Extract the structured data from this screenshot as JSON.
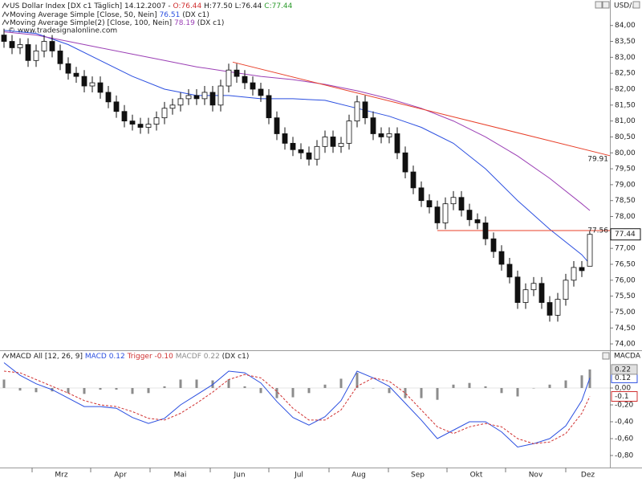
{
  "chart_data": [
    {
      "type": "candlestick",
      "title": "US Dollar Index [DX c1  Täglich] 14.12.2007 -",
      "ohlc_labels": [
        "O:76.44",
        "H:77.50",
        "L:76.44",
        "C:77.44"
      ],
      "symbol": "USD/...",
      "source": "(DX c1)",
      "watermark": "© www.tradesignalonline.com",
      "xlim": [
        -0.5,
        75.5
      ],
      "xticks": [
        {
          "value": 3.5,
          "label": "Mrz"
        },
        {
          "value": 10.8,
          "label": "Apr"
        },
        {
          "value": 18.2,
          "label": "Mai"
        },
        {
          "value": 25.7,
          "label": "Jun"
        },
        {
          "value": 33,
          "label": "Jul"
        },
        {
          "value": 40.5,
          "label": "Aug"
        },
        {
          "value": 47.9,
          "label": "Sep"
        },
        {
          "value": 55.2,
          "label": "Okt"
        },
        {
          "value": 62.5,
          "label": "Nov"
        },
        {
          "value": 70,
          "label": "Dez"
        }
      ],
      "ylim": [
        73.8,
        84.8
      ],
      "yticks": [
        {
          "value": 84,
          "label": "84,00"
        },
        {
          "value": 83.5,
          "label": "83,50"
        },
        {
          "value": 83,
          "label": "83,00"
        },
        {
          "value": 82.5,
          "label": "82,50"
        },
        {
          "value": 82,
          "label": "82,00"
        },
        {
          "value": 81.5,
          "label": "81,50"
        },
        {
          "value": 81,
          "label": "81,00"
        },
        {
          "value": 80.5,
          "label": "80,50"
        },
        {
          "value": 80,
          "label": "80,00"
        },
        {
          "value": 79.5,
          "label": "79,50"
        },
        {
          "value": 79,
          "label": "79,00"
        },
        {
          "value": 78.5,
          "label": "78,50"
        },
        {
          "value": 78,
          "label": "78,00"
        },
        {
          "value": 77.5,
          "label": "77,50"
        },
        {
          "value": 77,
          "label": "77,00"
        },
        {
          "value": 76.5,
          "label": "76,50"
        },
        {
          "value": 76,
          "label": "76,00"
        },
        {
          "value": 75.5,
          "label": "75,50"
        },
        {
          "value": 75,
          "label": "75,00"
        },
        {
          "value": 74.5,
          "label": "74,50"
        },
        {
          "value": 74,
          "label": "74,00"
        }
      ],
      "candle_colors": {
        "up": "#ffffff",
        "down": "#111111"
      },
      "ohlc": [
        [
          83.7,
          83.9,
          83.3,
          83.5
        ],
        [
          83.5,
          83.7,
          83.1,
          83.3
        ],
        [
          83.3,
          83.6,
          83.1,
          83.4
        ],
        [
          83.4,
          83.6,
          82.7,
          82.9
        ],
        [
          82.9,
          83.4,
          82.7,
          83.2
        ],
        [
          83.2,
          83.7,
          83.0,
          83.5
        ],
        [
          83.5,
          83.7,
          83.0,
          83.2
        ],
        [
          83.2,
          83.4,
          82.6,
          82.8
        ],
        [
          82.8,
          83.0,
          82.3,
          82.5
        ],
        [
          82.5,
          82.7,
          82.2,
          82.4
        ],
        [
          82.4,
          82.6,
          81.9,
          82.1
        ],
        [
          82.1,
          82.4,
          81.9,
          82.2
        ],
        [
          82.2,
          82.4,
          81.7,
          81.9
        ],
        [
          81.9,
          82.1,
          81.4,
          81.6
        ],
        [
          81.6,
          81.8,
          81.1,
          81.3
        ],
        [
          81.3,
          81.5,
          80.8,
          81.0
        ],
        [
          81.0,
          81.2,
          80.7,
          80.9
        ],
        [
          80.9,
          81.1,
          80.6,
          80.8
        ],
        [
          80.8,
          81.1,
          80.6,
          80.9
        ],
        [
          80.9,
          81.3,
          80.7,
          81.1
        ],
        [
          81.1,
          81.6,
          80.9,
          81.4
        ],
        [
          81.4,
          81.7,
          81.2,
          81.5
        ],
        [
          81.5,
          81.9,
          81.3,
          81.7
        ],
        [
          81.7,
          82.0,
          81.5,
          81.8
        ],
        [
          81.8,
          82.0,
          81.5,
          81.7
        ],
        [
          81.7,
          82.1,
          81.5,
          81.9
        ],
        [
          81.9,
          82.1,
          81.3,
          81.5
        ],
        [
          81.5,
          82.3,
          81.3,
          82.1
        ],
        [
          82.1,
          82.8,
          81.9,
          82.6
        ],
        [
          82.6,
          82.8,
          82.2,
          82.4
        ],
        [
          82.4,
          82.6,
          82.0,
          82.2
        ],
        [
          82.2,
          82.4,
          81.8,
          82.0
        ],
        [
          82.0,
          82.2,
          81.6,
          81.8
        ],
        [
          81.8,
          82.0,
          80.9,
          81.1
        ],
        [
          81.1,
          81.3,
          80.4,
          80.6
        ],
        [
          80.6,
          80.8,
          80.1,
          80.3
        ],
        [
          80.3,
          80.5,
          79.9,
          80.1
        ],
        [
          80.1,
          80.3,
          79.8,
          80.0
        ],
        [
          80.0,
          80.2,
          79.6,
          79.8
        ],
        [
          79.8,
          80.4,
          79.6,
          80.2
        ],
        [
          80.2,
          80.7,
          80.0,
          80.5
        ],
        [
          80.5,
          80.7,
          80.0,
          80.2
        ],
        [
          80.2,
          80.5,
          80.0,
          80.3
        ],
        [
          80.3,
          81.2,
          80.1,
          81.0
        ],
        [
          81.0,
          81.8,
          80.8,
          81.6
        ],
        [
          81.6,
          81.8,
          80.9,
          81.1
        ],
        [
          81.1,
          81.3,
          80.4,
          80.6
        ],
        [
          80.6,
          80.8,
          80.3,
          80.5
        ],
        [
          80.5,
          80.8,
          80.3,
          80.6
        ],
        [
          80.6,
          80.8,
          79.8,
          80.0
        ],
        [
          80.0,
          80.2,
          79.2,
          79.4
        ],
        [
          79.4,
          79.6,
          78.7,
          78.9
        ],
        [
          78.9,
          79.1,
          78.3,
          78.5
        ],
        [
          78.5,
          78.7,
          78.1,
          78.3
        ],
        [
          78.3,
          78.5,
          77.6,
          77.8
        ],
        [
          77.8,
          78.6,
          77.6,
          78.4
        ],
        [
          78.4,
          78.8,
          78.2,
          78.6
        ],
        [
          78.6,
          78.8,
          78.0,
          78.2
        ],
        [
          78.2,
          78.4,
          77.7,
          77.9
        ],
        [
          77.9,
          78.1,
          77.6,
          77.8
        ],
        [
          77.8,
          78.0,
          77.1,
          77.3
        ],
        [
          77.3,
          77.5,
          76.7,
          76.9
        ],
        [
          76.9,
          77.1,
          76.3,
          76.5
        ],
        [
          76.5,
          76.7,
          75.9,
          76.1
        ],
        [
          76.1,
          76.3,
          75.1,
          75.3
        ],
        [
          75.3,
          75.9,
          75.1,
          75.7
        ],
        [
          75.7,
          76.1,
          75.5,
          75.9
        ],
        [
          75.9,
          76.1,
          75.1,
          75.3
        ],
        [
          75.3,
          75.5,
          74.7,
          74.9
        ],
        [
          74.9,
          75.6,
          74.7,
          75.4
        ],
        [
          75.4,
          76.2,
          75.2,
          76.0
        ],
        [
          76.0,
          76.6,
          75.8,
          76.4
        ],
        [
          76.4,
          76.6,
          76.1,
          76.3
        ],
        [
          76.44,
          77.5,
          76.44,
          77.44
        ]
      ],
      "last_label": "77.44",
      "series": [
        {
          "name": "Moving Average Simple [Close, 50, Nein]",
          "color": "#2b4fe0",
          "value_label": "76.51",
          "x": [
            0,
            4,
            8,
            12,
            16,
            20,
            24,
            28,
            32,
            36,
            40,
            44,
            48,
            52,
            56,
            60,
            64,
            68,
            72,
            73
          ],
          "values": [
            83.85,
            83.75,
            83.4,
            82.9,
            82.4,
            82.0,
            81.8,
            81.8,
            81.7,
            81.7,
            81.65,
            81.4,
            81.15,
            80.8,
            80.3,
            79.5,
            78.5,
            77.6,
            76.8,
            76.51
          ]
        },
        {
          "name": "Moving Average Simple(2) [Close, 100, Nein]",
          "color": "#9b3fb5",
          "value_label": "78.19",
          "x": [
            0,
            4,
            8,
            12,
            16,
            20,
            24,
            28,
            32,
            36,
            40,
            44,
            48,
            52,
            56,
            60,
            64,
            68,
            72,
            73
          ],
          "values": [
            83.8,
            83.7,
            83.5,
            83.3,
            83.1,
            82.9,
            82.7,
            82.55,
            82.4,
            82.3,
            82.15,
            81.95,
            81.7,
            81.4,
            81.0,
            80.5,
            79.9,
            79.2,
            78.4,
            78.19
          ]
        }
      ],
      "trendlines": [
        {
          "color": "#e8402a",
          "label": "79.91",
          "x": [
            28.5,
            75.5
          ],
          "values": [
            82.85,
            79.91
          ]
        },
        {
          "color": "#e8402a",
          "label": "77.56",
          "x": [
            54,
            75.5
          ],
          "values": [
            77.56,
            77.56
          ]
        }
      ]
    },
    {
      "type": "macd",
      "title": "MACD All [12, 26, 9]",
      "source": "(DX c1)",
      "axis_title": "MACDA",
      "xlim": [
        -0.5,
        75.5
      ],
      "ylim": [
        -0.943,
        0.438
      ],
      "yticks": [
        {
          "value": 0,
          "label": "0,00"
        },
        {
          "value": -0.2,
          "label": "-0,20"
        },
        {
          "value": -0.4,
          "label": "-0,40"
        },
        {
          "value": -0.6,
          "label": "-0,60"
        },
        {
          "value": -0.8,
          "label": "-0,80"
        }
      ],
      "x": [
        0,
        2,
        4,
        6,
        8,
        10,
        12,
        14,
        16,
        18,
        20,
        22,
        24,
        26,
        28,
        30,
        32,
        34,
        36,
        38,
        40,
        42,
        44,
        46,
        48,
        50,
        52,
        54,
        56,
        58,
        60,
        62,
        64,
        66,
        68,
        70,
        72,
        73
      ],
      "series": [
        {
          "name": "MACD",
          "color": "#2b4fe0",
          "style": "solid",
          "legend_value": "0.12",
          "tag_label": "0.12",
          "values": [
            0.3,
            0.15,
            0.05,
            -0.02,
            -0.12,
            -0.22,
            -0.22,
            -0.24,
            -0.35,
            -0.42,
            -0.36,
            -0.2,
            -0.08,
            0.04,
            0.2,
            0.18,
            0.06,
            -0.16,
            -0.35,
            -0.44,
            -0.34,
            -0.15,
            0.2,
            0.12,
            0.02,
            -0.18,
            -0.38,
            -0.6,
            -0.5,
            -0.4,
            -0.4,
            -0.52,
            -0.7,
            -0.66,
            -0.6,
            -0.45,
            -0.15,
            0.12
          ]
        },
        {
          "name": "Trigger",
          "color": "#d03030",
          "style": "dashed",
          "legend_value": "-0.10",
          "tag_label": "-0.1",
          "values": [
            0.2,
            0.18,
            0.1,
            0.02,
            -0.06,
            -0.15,
            -0.2,
            -0.22,
            -0.28,
            -0.36,
            -0.38,
            -0.3,
            -0.18,
            -0.05,
            0.1,
            0.16,
            0.12,
            -0.04,
            -0.24,
            -0.38,
            -0.38,
            -0.26,
            0.02,
            0.12,
            0.08,
            -0.06,
            -0.26,
            -0.46,
            -0.54,
            -0.46,
            -0.42,
            -0.46,
            -0.6,
            -0.66,
            -0.64,
            -0.54,
            -0.3,
            -0.1
          ]
        },
        {
          "name": "MACDF",
          "color": "#8c8c8c",
          "style": "histogram",
          "legend_value": "0.22",
          "tag_label": "0.22",
          "values": [
            0.1,
            -0.03,
            -0.05,
            -0.04,
            -0.06,
            -0.07,
            -0.02,
            -0.02,
            -0.07,
            -0.06,
            0.02,
            0.1,
            0.1,
            0.09,
            0.1,
            0.02,
            -0.06,
            -0.12,
            -0.11,
            -0.06,
            0.04,
            0.11,
            0.18,
            0.0,
            -0.06,
            -0.12,
            -0.12,
            -0.14,
            0.04,
            0.06,
            0.02,
            -0.06,
            -0.1,
            0.0,
            0.04,
            0.09,
            0.15,
            0.22
          ]
        }
      ]
    }
  ]
}
